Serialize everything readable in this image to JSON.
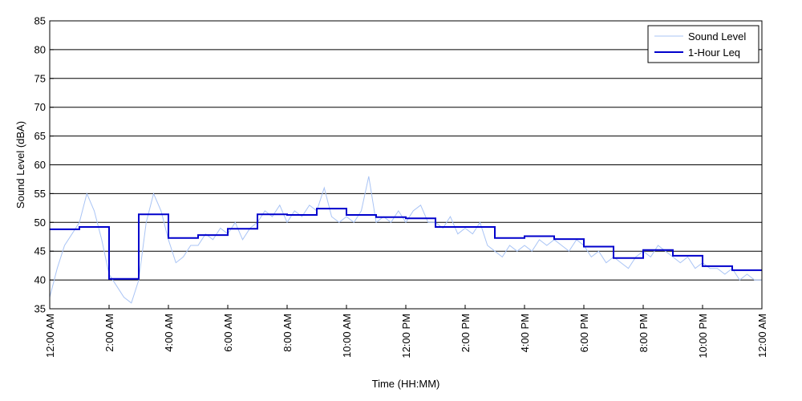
{
  "chart_data": {
    "type": "line",
    "xlabel": "Time (HH:MM)",
    "ylabel": "Sound Level (dBA)",
    "ylim": [
      35,
      85
    ],
    "xlim": [
      0,
      24
    ],
    "yticks": [
      35,
      40,
      45,
      50,
      55,
      60,
      65,
      70,
      75,
      80,
      85
    ],
    "xticks": [
      {
        "hour": 0,
        "label": "12:00 AM"
      },
      {
        "hour": 2,
        "label": "2:00 AM"
      },
      {
        "hour": 4,
        "label": "4:00 AM"
      },
      {
        "hour": 6,
        "label": "6:00 AM"
      },
      {
        "hour": 8,
        "label": "8:00 AM"
      },
      {
        "hour": 10,
        "label": "10:00 AM"
      },
      {
        "hour": 12,
        "label": "12:00 PM"
      },
      {
        "hour": 14,
        "label": "2:00 PM"
      },
      {
        "hour": 16,
        "label": "4:00 PM"
      },
      {
        "hour": 18,
        "label": "6:00 PM"
      },
      {
        "hour": 20,
        "label": "8:00 PM"
      },
      {
        "hour": 22,
        "label": "10:00 PM"
      },
      {
        "hour": 24,
        "label": "12:00 AM"
      }
    ],
    "grid": "horizontal",
    "legend_position": "top-right",
    "series": [
      {
        "name": "Sound Level",
        "color": "#a9c4f5",
        "style": "thin",
        "x": [
          0.0,
          0.25,
          0.5,
          0.75,
          1.0,
          1.25,
          1.5,
          1.75,
          2.0,
          2.25,
          2.5,
          2.75,
          3.0,
          3.25,
          3.5,
          3.75,
          4.0,
          4.25,
          4.5,
          4.75,
          5.0,
          5.25,
          5.5,
          5.75,
          6.0,
          6.25,
          6.5,
          6.75,
          7.0,
          7.25,
          7.5,
          7.75,
          8.0,
          8.25,
          8.5,
          8.75,
          9.0,
          9.25,
          9.5,
          9.75,
          10.0,
          10.25,
          10.5,
          10.75,
          11.0,
          11.25,
          11.5,
          11.75,
          12.0,
          12.25,
          12.5,
          12.75,
          13.0,
          13.25,
          13.5,
          13.75,
          14.0,
          14.25,
          14.5,
          14.75,
          15.0,
          15.25,
          15.5,
          15.75,
          16.0,
          16.25,
          16.5,
          16.75,
          17.0,
          17.25,
          17.5,
          17.75,
          18.0,
          18.25,
          18.5,
          18.75,
          19.0,
          19.25,
          19.5,
          19.75,
          20.0,
          20.25,
          20.5,
          20.75,
          21.0,
          21.25,
          21.5,
          21.75,
          22.0,
          22.25,
          22.5,
          22.75,
          23.0,
          23.25,
          23.5,
          23.75,
          24.0
        ],
        "y": [
          37,
          42,
          46,
          48,
          50,
          55,
          52,
          47,
          41,
          39,
          37,
          36,
          40,
          50,
          55,
          52,
          47,
          43,
          44,
          46,
          46,
          48,
          47,
          49,
          48,
          50,
          47,
          49,
          50,
          52,
          51,
          53,
          50,
          52,
          51,
          53,
          52,
          56,
          51,
          50,
          51,
          50,
          52,
          58,
          50,
          51,
          50,
          52,
          50,
          52,
          53,
          50,
          50,
          49,
          51,
          48,
          49,
          48,
          50,
          46,
          45,
          44,
          46,
          45,
          46,
          45,
          47,
          46,
          47,
          46,
          45,
          47,
          46,
          44,
          45,
          43,
          44,
          43,
          42,
          44,
          45,
          44,
          46,
          45,
          44,
          43,
          44,
          42,
          43,
          42,
          42,
          41,
          42,
          40,
          41,
          40,
          40
        ]
      },
      {
        "name": "1-Hour Leq",
        "color": "#0000cc",
        "style": "step",
        "x": [
          0,
          1,
          2,
          3,
          4,
          5,
          6,
          7,
          8,
          9,
          10,
          11,
          12,
          13,
          14,
          15,
          16,
          17,
          18,
          19,
          20,
          21,
          22,
          23
        ],
        "y": [
          48.8,
          49.2,
          40.2,
          51.4,
          47.3,
          47.8,
          48.9,
          51.4,
          51.3,
          52.4,
          51.3,
          50.9,
          50.7,
          49.2,
          49.2,
          47.3,
          47.6,
          47.1,
          45.8,
          43.8,
          45.2,
          44.2,
          42.4,
          41.7
        ]
      }
    ]
  }
}
